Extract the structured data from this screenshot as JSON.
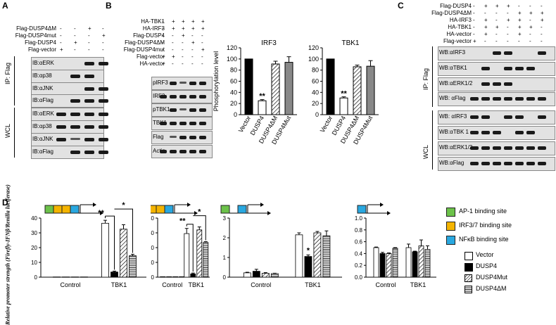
{
  "panels": {
    "a": "A",
    "b": "B",
    "c": "C",
    "d": "D"
  },
  "panelA": {
    "conditions": [
      "Flag-DUSP4ΔM",
      "Flag-DUSP4mut",
      "Flag-DUSP4",
      "Flag-vector"
    ],
    "signs": [
      [
        "-",
        "-",
        "+",
        "-"
      ],
      [
        "-",
        "-",
        "-",
        "+"
      ],
      [
        "-",
        "+",
        "-",
        "-"
      ],
      [
        "+",
        "-",
        "-",
        "-"
      ]
    ],
    "group_ip": "IP: Flag",
    "group_wcl": "WCL",
    "blots_ip": [
      "IB:αERK",
      "IB:αp38",
      "IB:αJNK",
      "IB:αFlag"
    ],
    "blots_wcl": [
      "IB:αERK",
      "IB:αp38",
      "IB:αJNK",
      "IB:αFlag"
    ]
  },
  "panelB": {
    "conditions": [
      "HA-TBK1",
      "HA-IRF3",
      "Flag-DUSP4",
      "Flag-DUSP4ΔM",
      "Flag-DUSP4mut",
      "Flag-vector",
      "HA-vector"
    ],
    "signs": [
      [
        "-",
        "+",
        "+",
        "+",
        "+"
      ],
      [
        "-",
        "+",
        "+",
        "+",
        "+"
      ],
      [
        "-",
        "-",
        "+",
        "-",
        "-"
      ],
      [
        "-",
        "-",
        "-",
        "+",
        "-"
      ],
      [
        "-",
        "-",
        "-",
        "-",
        "+"
      ],
      [
        "+",
        "+",
        "-",
        "-",
        "-"
      ],
      [
        "+",
        "-",
        "-",
        "-",
        "-"
      ]
    ],
    "blots": [
      "pIRF3",
      "IRF3",
      "pTBK1",
      "TBK1",
      "Flag",
      "Actin"
    ]
  },
  "panelC": {
    "conditions": [
      "Flag-DUSP4",
      "Flag-DUSP4ΔM",
      "HA-IRF3",
      "HA-TBK1",
      "HA-vector",
      "Flag-vector"
    ],
    "signs": [
      [
        "-",
        "+",
        "+",
        "+",
        "-",
        "-",
        "-"
      ],
      [
        "-",
        "-",
        "-",
        "-",
        "+",
        "+",
        "+"
      ],
      [
        "-",
        "+",
        "-",
        "+",
        "+",
        "-",
        "+"
      ],
      [
        "-",
        "+",
        "+",
        "-",
        "+",
        "+",
        "-"
      ],
      [
        "-",
        "+",
        "-",
        "-",
        "+",
        "-",
        "-"
      ],
      [
        "+",
        "-",
        "-",
        "-",
        "-",
        "-",
        "-"
      ]
    ],
    "group_ip": "IP: Flag",
    "group_wcl": "WCL",
    "blots_ip": [
      "WB:αIRF3",
      "WB:αTBK1",
      "WB:αERK1/2",
      "WB: αFlag"
    ],
    "blots_wcl": [
      "WB: αIRF3",
      "WB:αTBK 1",
      "WB:αERK1/2",
      "WB:αFlag"
    ]
  },
  "chart_data": [
    {
      "type": "bar",
      "title": "IRF3",
      "ylabel": "Phosphorylation level",
      "categories": [
        "Vector",
        "DUSP4",
        "DUSP4ΔM",
        "DUSP4Mut"
      ],
      "values": [
        100,
        25,
        91,
        94
      ],
      "errors": [
        0,
        2,
        5,
        10
      ],
      "ylim": [
        0,
        120
      ],
      "yticks": [
        "0",
        "20",
        "40",
        "60",
        "80",
        "100",
        "120"
      ],
      "annotations": [
        {
          "category": "DUSP4",
          "text": "**"
        }
      ]
    },
    {
      "type": "bar",
      "title": "TBK1",
      "ylabel": "",
      "categories": [
        "Vector",
        "DUSP4",
        "DUSP4ΔM",
        "DUSP4Mut"
      ],
      "values": [
        100,
        30,
        86,
        87
      ],
      "errors": [
        0,
        2,
        3,
        10
      ],
      "ylim": [
        0,
        120
      ],
      "yticks": [
        "0",
        "20",
        "40",
        "60",
        "80",
        "100",
        "120"
      ],
      "annotations": [
        {
          "category": "DUSP4",
          "text": "**"
        }
      ]
    },
    {
      "type": "bar",
      "ylabel": "Relative promoter strength (Firefly-IFNβ/Renilla luciferase)",
      "categories": [
        "Control",
        "TBK1"
      ],
      "series": [
        {
          "name": "Vector",
          "values": [
            0.15,
            36.5
          ],
          "errors": [
            0,
            2.0
          ]
        },
        {
          "name": "DUSP4",
          "values": [
            0.15,
            3.5
          ],
          "errors": [
            0,
            0.6
          ]
        },
        {
          "name": "DUSP4Mut",
          "values": [
            0.15,
            32.5
          ],
          "errors": [
            0,
            3.0
          ]
        },
        {
          "name": "DUSP4ΔM",
          "values": [
            0.15,
            14.5
          ],
          "errors": [
            0,
            1.0
          ]
        }
      ],
      "ylim": [
        0,
        40
      ],
      "yticks": [
        "0",
        "10",
        "20",
        "30",
        "40"
      ],
      "annotations": [
        "**",
        "*"
      ]
    },
    {
      "type": "bar",
      "categories": [
        "Control",
        "TBK1"
      ],
      "series": [
        {
          "name": "Vector",
          "values": [
            0.3,
            29.5
          ],
          "errors": [
            0,
            3.5
          ]
        },
        {
          "name": "DUSP4",
          "values": [
            0.3,
            2.2
          ],
          "errors": [
            0,
            0.6
          ]
        },
        {
          "name": "DUSP4Mut",
          "values": [
            0.3,
            32.0
          ],
          "errors": [
            0,
            2.0
          ]
        },
        {
          "name": "DUSP4ΔM",
          "values": [
            0.3,
            23.5
          ],
          "errors": [
            0,
            0.5
          ]
        }
      ],
      "ylim": [
        0,
        40
      ],
      "yticks": [
        "0",
        "10",
        "20",
        "30",
        "40"
      ],
      "annotations": [
        "**",
        "*"
      ]
    },
    {
      "type": "bar",
      "categories": [
        "Control",
        "TBK1"
      ],
      "series": [
        {
          "name": "Vector",
          "values": [
            0.22,
            2.15
          ],
          "errors": [
            0.03,
            0.1
          ]
        },
        {
          "name": "DUSP4",
          "values": [
            0.3,
            1.05
          ],
          "errors": [
            0.1,
            0.08
          ]
        },
        {
          "name": "DUSP4Mut",
          "values": [
            0.2,
            2.25
          ],
          "errors": [
            0.03,
            0.07
          ]
        },
        {
          "name": "DUSP4ΔM",
          "values": [
            0.18,
            2.1
          ],
          "errors": [
            0.02,
            0.25
          ]
        }
      ],
      "ylim": [
        0,
        3
      ],
      "yticks": [
        "0",
        "1",
        "2",
        "3"
      ],
      "annotations": [
        "*"
      ]
    },
    {
      "type": "bar",
      "categories": [
        "Control",
        "TBK1"
      ],
      "series": [
        {
          "name": "Vector",
          "values": [
            0.5,
            0.5
          ],
          "errors": [
            0.01,
            0.06
          ]
        },
        {
          "name": "DUSP4",
          "values": [
            0.4,
            0.43
          ],
          "errors": [
            0.02,
            0.01
          ]
        },
        {
          "name": "DUSP4Mut",
          "values": [
            0.4,
            0.53
          ],
          "errors": [
            0.01,
            0.1
          ]
        },
        {
          "name": "DUSP4ΔM",
          "values": [
            0.49,
            0.47
          ],
          "errors": [
            0.01,
            0.06
          ]
        }
      ],
      "ylim": [
        0,
        1
      ],
      "yticks": [
        "0.0",
        "0.2",
        "0.4",
        "0.6",
        "0.8",
        "1.0"
      ],
      "annotations": []
    }
  ],
  "sites_legend": [
    {
      "label": "AP-1 binding site",
      "color": "#6cc24a"
    },
    {
      "label": "IRF3/7 binding site",
      "color": "#f4b400"
    },
    {
      "label": "NFκB binding site",
      "color": "#29a8e0"
    }
  ],
  "bar_legend": [
    "Vector",
    "DUSP4",
    "DUSP4Mut",
    "DUSP4ΔM"
  ]
}
